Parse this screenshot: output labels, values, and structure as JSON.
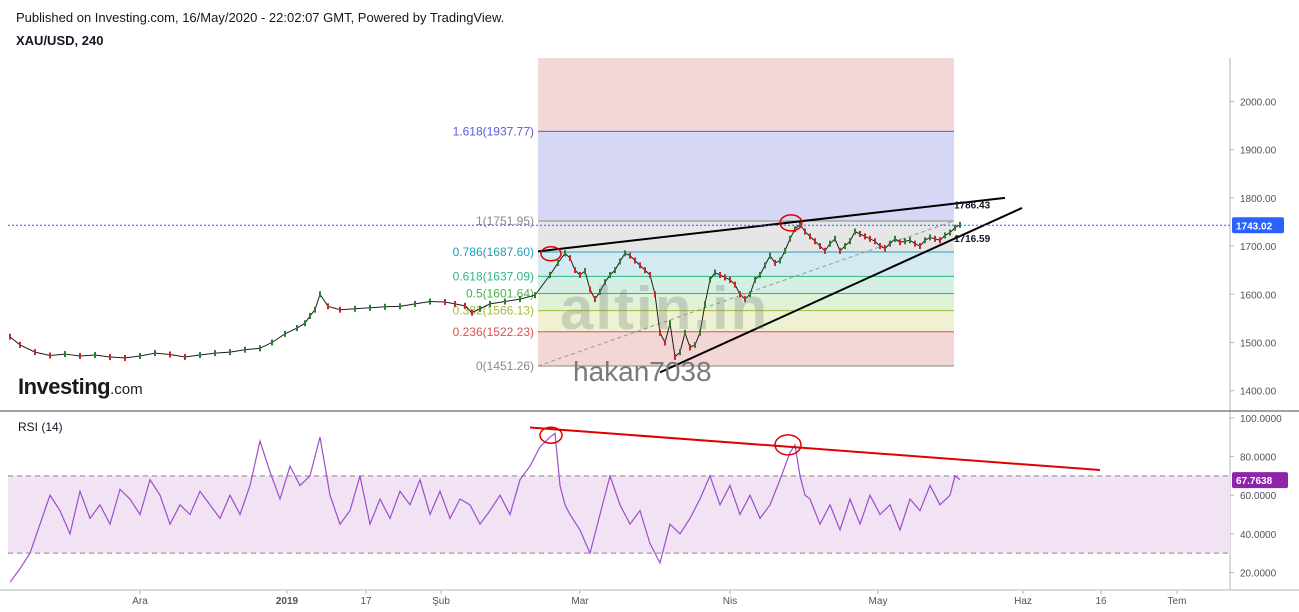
{
  "header": {
    "published": "Published on Investing.com, 16/May/2020 - 22:02:07 GMT, Powered by TradingView.",
    "symbol": "XAU/USD, 240"
  },
  "logo": {
    "main": "Investing",
    "suffix": ".com"
  },
  "watermarks": {
    "user": "hakan7038",
    "brand": "altin.in"
  },
  "rsi_panel": {
    "title": "RSI (14)"
  },
  "chart_data": [
    {
      "type": "line",
      "title": "XAU/USD, 240",
      "style": "candlestick",
      "ylim": [
        1360,
        2090
      ],
      "y_ticks": [
        "1400.00",
        "1500.00",
        "1600.00",
        "1700.00",
        "1800.00",
        "1900.00",
        "2000.00"
      ],
      "x_ticks": [
        "Ara",
        "2019",
        "17",
        "Şub",
        "Mar",
        "Nis",
        "May",
        "Haz",
        "16",
        "Tem"
      ],
      "last_price": {
        "value": 1743.02,
        "label": "1743.02",
        "color": "#2962ff"
      },
      "series": [
        {
          "x": [
            0,
            10,
            25,
            40,
            55,
            70,
            85,
            100,
            115,
            130,
            145,
            160,
            175,
            190,
            205,
            220,
            235,
            250,
            262,
            275,
            287,
            295,
            300,
            305,
            310,
            318,
            330,
            345,
            360,
            375,
            390,
            405,
            420,
            435,
            445,
            455,
            462,
            470,
            480,
            495,
            510,
            525,
            540,
            548,
            555,
            560,
            565,
            570,
            575,
            580,
            585,
            590,
            595,
            600,
            605,
            610,
            615,
            620,
            625,
            630,
            635,
            640,
            645,
            650,
            655,
            660,
            665,
            670,
            675,
            680,
            685,
            690,
            695,
            700,
            705,
            710,
            715,
            720,
            725,
            730,
            735,
            740,
            745,
            750,
            755,
            760,
            765,
            770,
            775,
            780,
            785,
            790,
            795,
            800,
            805,
            810,
            815,
            820,
            825,
            830,
            835,
            840,
            845,
            850,
            855,
            860,
            865,
            870,
            875,
            880,
            885,
            890,
            895,
            900,
            905,
            910,
            915,
            920,
            925,
            930,
            935,
            940,
            945,
            950
          ],
          "values": [
            1512,
            1495,
            1480,
            1473,
            1476,
            1472,
            1474,
            1470,
            1468,
            1472,
            1478,
            1475,
            1470,
            1474,
            1478,
            1480,
            1485,
            1488,
            1500,
            1518,
            1530,
            1540,
            1555,
            1568,
            1600,
            1575,
            1568,
            1570,
            1572,
            1574,
            1575,
            1580,
            1585,
            1584,
            1580,
            1576,
            1562,
            1570,
            1580,
            1585,
            1590,
            1598,
            1640,
            1665,
            1685,
            1675,
            1650,
            1640,
            1648,
            1610,
            1590,
            1605,
            1625,
            1640,
            1650,
            1668,
            1685,
            1680,
            1670,
            1660,
            1650,
            1640,
            1600,
            1520,
            1500,
            1540,
            1470,
            1480,
            1520,
            1490,
            1495,
            1520,
            1580,
            1630,
            1645,
            1640,
            1635,
            1630,
            1620,
            1600,
            1590,
            1600,
            1630,
            1640,
            1660,
            1680,
            1665,
            1670,
            1690,
            1715,
            1735,
            1745,
            1730,
            1720,
            1710,
            1700,
            1690,
            1705,
            1715,
            1690,
            1700,
            1710,
            1730,
            1725,
            1720,
            1715,
            1710,
            1700,
            1695,
            1705,
            1715,
            1708,
            1710,
            1712,
            1705,
            1700,
            1712,
            1718,
            1715,
            1712,
            1722,
            1728,
            1738,
            1744
          ]
        }
      ],
      "fibonacci": {
        "color_labels": [
          {
            "label": "1.618(1937.77)",
            "value": 1937.77,
            "color": "#5b5bd6"
          },
          {
            "label": "1(1751.95)",
            "value": 1751.95,
            "color": "#888888"
          },
          {
            "label": "0.786(1687.60)",
            "value": 1687.6,
            "color": "#2a9db8"
          },
          {
            "label": "0.618(1637.09)",
            "value": 1637.09,
            "color": "#2fb87f"
          },
          {
            "label": "0.5(1601.64)",
            "value": 1601.64,
            "color": "#4caf50"
          },
          {
            "label": "0.382(1566.13)",
            "value": 1566.13,
            "color": "#a8b83a"
          },
          {
            "label": "0.236(1522.23)",
            "value": 1522.23,
            "color": "#d9534f"
          },
          {
            "label": "0(1451.26)",
            "value": 1451.26,
            "color": "#888888"
          }
        ],
        "top_value": 2090
      },
      "annotations": [
        {
          "label": "1786.43",
          "value": 1786.43
        },
        {
          "label": "1716.59",
          "value": 1716.59
        }
      ]
    },
    {
      "type": "line",
      "title": "RSI (14)",
      "ylim": [
        12,
        103
      ],
      "y_ticks": [
        "20.0000",
        "40.0000",
        "60.0000",
        "80.0000",
        "100.0000"
      ],
      "band": [
        30,
        70
      ],
      "last_value": {
        "value": 67.7638,
        "label": "67.7638",
        "color": "#8e24aa"
      },
      "series": [
        {
          "x": [
            0,
            10,
            20,
            30,
            40,
            50,
            60,
            70,
            80,
            90,
            100,
            110,
            120,
            130,
            140,
            150,
            160,
            170,
            180,
            190,
            200,
            210,
            220,
            230,
            240,
            250,
            260,
            270,
            280,
            290,
            300,
            310,
            320,
            330,
            340,
            350,
            360,
            370,
            380,
            390,
            400,
            410,
            420,
            430,
            440,
            450,
            460,
            470,
            480,
            490,
            500,
            510,
            520,
            530,
            540,
            545,
            550,
            555,
            560,
            570,
            580,
            590,
            600,
            610,
            620,
            630,
            640,
            650,
            660,
            670,
            680,
            690,
            700,
            710,
            720,
            730,
            740,
            750,
            760,
            770,
            780,
            785,
            790,
            795,
            800,
            810,
            820,
            830,
            840,
            850,
            860,
            870,
            880,
            890,
            900,
            910,
            920,
            930,
            940,
            945,
            950
          ],
          "values": [
            15,
            22,
            30,
            45,
            60,
            52,
            40,
            62,
            48,
            55,
            45,
            63,
            58,
            50,
            68,
            60,
            45,
            55,
            50,
            62,
            55,
            48,
            60,
            50,
            65,
            88,
            72,
            58,
            75,
            65,
            70,
            90,
            60,
            45,
            52,
            70,
            45,
            58,
            48,
            62,
            55,
            68,
            50,
            62,
            48,
            58,
            55,
            45,
            52,
            60,
            50,
            68,
            75,
            85,
            90,
            92,
            65,
            55,
            50,
            42,
            30,
            50,
            70,
            55,
            45,
            52,
            35,
            25,
            45,
            40,
            48,
            58,
            70,
            55,
            65,
            50,
            60,
            48,
            55,
            68,
            82,
            86,
            70,
            60,
            58,
            45,
            55,
            42,
            58,
            45,
            60,
            50,
            55,
            42,
            58,
            52,
            65,
            55,
            60,
            70,
            68
          ]
        }
      ],
      "annotations": [
        {
          "type": "trendline",
          "from": [
            -8,
            95
          ],
          "to": [
            148,
            73
          ]
        }
      ]
    }
  ]
}
